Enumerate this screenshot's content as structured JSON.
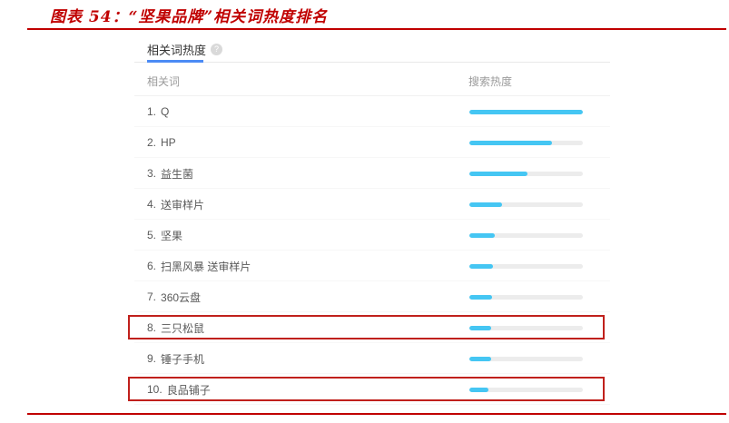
{
  "figure": {
    "title": "图表 54：“坚果品牌”相关词热度排名"
  },
  "widget": {
    "tab_label": "相关词热度",
    "help_icon": "?",
    "col_keyword": "相关词",
    "col_heat": "搜索热度"
  },
  "chart_data": {
    "type": "bar",
    "title": "相关词热度",
    "xlabel": "相关词",
    "ylabel": "搜索热度",
    "categories": [
      "Q",
      "HP",
      "益生菌",
      "送审样片",
      "坚果",
      "扫黑风暴 送审样片",
      "360云盘",
      "三只松鼠",
      "锤子手机",
      "良品铺子"
    ],
    "values": [
      100,
      73,
      51,
      29,
      22,
      21,
      20,
      19,
      19,
      17
    ],
    "ylim": [
      0,
      100
    ],
    "legend_position": "none",
    "grid": false,
    "highlighted": [
      "三只松鼠",
      "良品铺子"
    ]
  },
  "table": {
    "rows": [
      {
        "rank": "1.",
        "label": "Q",
        "heat": 100,
        "boxed": false
      },
      {
        "rank": "2.",
        "label": "HP",
        "heat": 73,
        "boxed": false
      },
      {
        "rank": "3.",
        "label": "益生菌",
        "heat": 51,
        "boxed": false
      },
      {
        "rank": "4.",
        "label": "送审样片",
        "heat": 29,
        "boxed": false
      },
      {
        "rank": "5.",
        "label": "坚果",
        "heat": 22,
        "boxed": false
      },
      {
        "rank": "6.",
        "label": "扫黑风暴 送审样片",
        "heat": 21,
        "boxed": false
      },
      {
        "rank": "7.",
        "label": "360云盘",
        "heat": 20,
        "boxed": false
      },
      {
        "rank": "8.",
        "label": "三只松鼠",
        "heat": 19,
        "boxed": true
      },
      {
        "rank": "9.",
        "label": "锤子手机",
        "heat": 19,
        "boxed": false
      },
      {
        "rank": "10.",
        "label": "良品铺子",
        "heat": 17,
        "boxed": true
      }
    ]
  },
  "colors": {
    "title_red": "#c00000",
    "highlight_box_red": "#c0201c",
    "bar_blue": "#45c6f3",
    "tab_underline_blue": "#4c8bf5"
  }
}
